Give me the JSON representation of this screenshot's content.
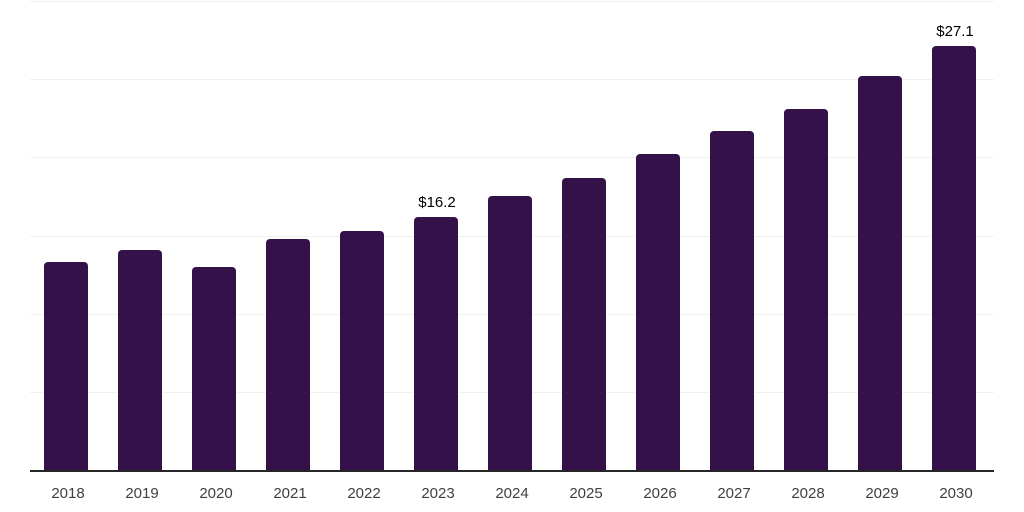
{
  "chart_data": {
    "type": "bar",
    "title": "",
    "xlabel": "",
    "ylabel": "",
    "categories": [
      "2018",
      "2019",
      "2020",
      "2021",
      "2022",
      "2023",
      "2024",
      "2025",
      "2026",
      "2027",
      "2028",
      "2029",
      "2030"
    ],
    "values": [
      13.3,
      14.1,
      13.0,
      14.8,
      15.3,
      16.2,
      17.5,
      18.7,
      20.2,
      21.7,
      23.1,
      25.2,
      27.1
    ],
    "data_labels": [
      {
        "category": "2023",
        "text": "$16.2"
      },
      {
        "category": "2030",
        "text": "$27.1"
      }
    ],
    "ylim": [
      0,
      30
    ],
    "gridline_step": 5,
    "grid": true,
    "y_tick_labels_shown": false,
    "legend_position": "none",
    "colors": {
      "bar": "#341249",
      "gridline": "#f0f0f0",
      "axis_line": "#262626",
      "tick_label": "#404040",
      "data_label": "#000000",
      "background": "#ffffff"
    }
  }
}
